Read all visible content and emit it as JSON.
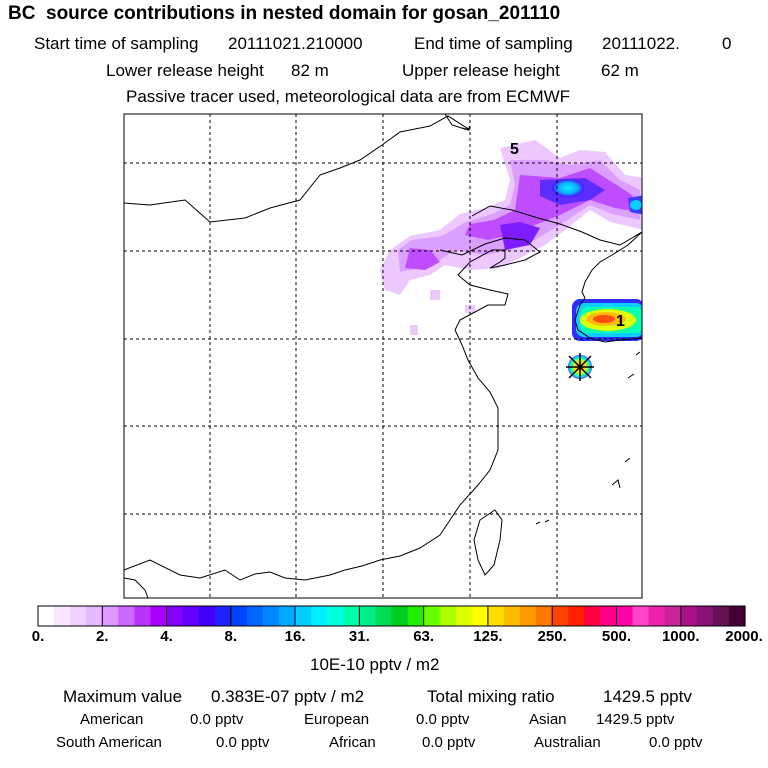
{
  "header": {
    "title": "BC  source contributions in nested domain for gosan_201110",
    "start_label": "Start time of sampling",
    "start_value": "20111021.210000",
    "end_label": "End time of sampling",
    "end_value": "20111022.",
    "end_suffix": "0",
    "lower_label": "Lower release height",
    "lower_value": "82 m",
    "upper_label": "Upper release height",
    "upper_value": "62 m",
    "tracer_note": "Passive tracer used, meteorological data are from ECMWF"
  },
  "map": {
    "markers": [
      {
        "label": "5"
      },
      {
        "label": "1"
      }
    ],
    "receptor_icon": "star-cross-icon"
  },
  "colorbar": {
    "labels": [
      "0.",
      "2.",
      "4.",
      "8.",
      "16.",
      "31.",
      "63.",
      "125.",
      "250.",
      "500.",
      "1000.",
      "2000."
    ],
    "colors": [
      "#ffffff",
      "#f8e8ff",
      "#f0d0ff",
      "#e6b8ff",
      "#dd99ff",
      "#cc66ff",
      "#bb33ff",
      "#aa00ff",
      "#8800ff",
      "#6600ff",
      "#4400ff",
      "#2222ff",
      "#0044ff",
      "#0066ff",
      "#0088ff",
      "#00aaff",
      "#00ccff",
      "#00eeff",
      "#00ffdd",
      "#00ffaa",
      "#00ee88",
      "#00dd55",
      "#00cc22",
      "#22ee00",
      "#66ff00",
      "#aaff00",
      "#ddff00",
      "#ffff00",
      "#ffdd00",
      "#ffbb00",
      "#ff9900",
      "#ff7700",
      "#ff4400",
      "#ff2200",
      "#ff0044",
      "#ff0088",
      "#ff00aa",
      "#ff44cc",
      "#ee22aa",
      "#cc2299",
      "#aa1188",
      "#881177",
      "#661155",
      "#440033"
    ],
    "unit": "10E-10 pptv / m2"
  },
  "summary": {
    "max_label": "Maximum value",
    "max_value": "0.383E-07 pptv / m2",
    "total_label": "Total mixing ratio",
    "total_value": "1429.5 pptv",
    "regions": [
      {
        "name": "American",
        "value": "0.0 pptv"
      },
      {
        "name": "European",
        "value": "0.0 pptv"
      },
      {
        "name": "Asian",
        "value": "1429.5 pptv"
      },
      {
        "name": "South American",
        "value": "0.0 pptv"
      },
      {
        "name": "African",
        "value": "0.0 pptv"
      },
      {
        "name": "Australian",
        "value": "0.0 pptv"
      }
    ]
  }
}
